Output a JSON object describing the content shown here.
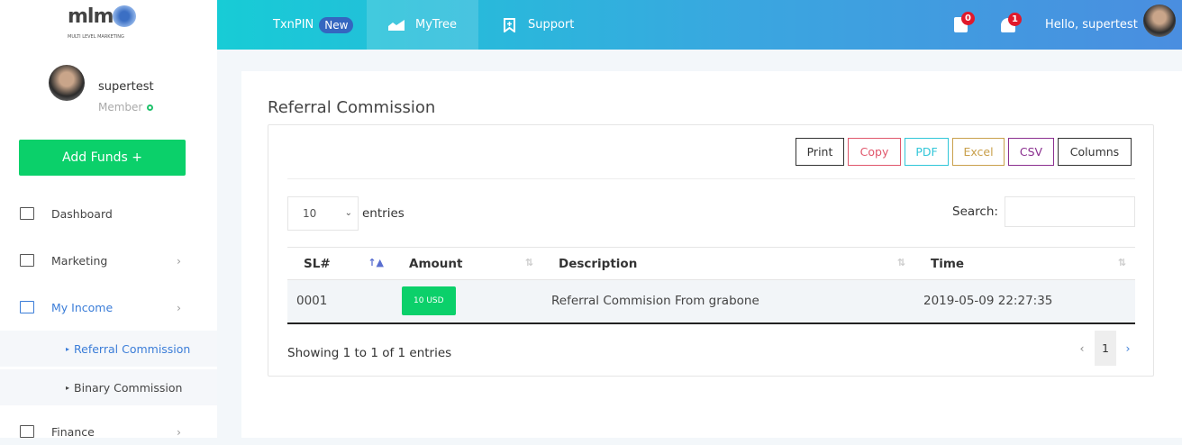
{
  "brand": {
    "logo_text": "mlm",
    "tagline": "MULTI LEVEL MARKETING"
  },
  "user": {
    "name": "supertest",
    "role": "Member",
    "status_color": "#1fc16b"
  },
  "sidebar": {
    "add_funds": "Add Funds +",
    "items": [
      {
        "label": "Dashboard",
        "icon": "monitor-icon"
      },
      {
        "label": "Marketing",
        "icon": "presentation-icon"
      },
      {
        "label": "My Income",
        "icon": "bank-icon",
        "active": true
      },
      {
        "label": "Finance",
        "icon": "dollar-icon"
      }
    ],
    "submenu": [
      {
        "label": "Referral Commission",
        "active": true
      },
      {
        "label": "Binary Commission"
      }
    ]
  },
  "topbar": {
    "txnpin": "TxnPIN",
    "new_badge": "New",
    "mytree": "MyTree",
    "support": "Support",
    "messages_count": "0",
    "notifications_count": "1",
    "greeting": "Hello, supertest"
  },
  "page": {
    "title": "Referral Commission",
    "buttons": [
      {
        "label": "Print",
        "color": "#333333"
      },
      {
        "label": "Copy",
        "color": "#e0566b"
      },
      {
        "label": "PDF",
        "color": "#31c6d8"
      },
      {
        "label": "Excel",
        "color": "#c9a04c"
      },
      {
        "label": "CSV",
        "color": "#8a2f8f"
      },
      {
        "label": "Columns",
        "color": "#333333"
      }
    ],
    "page_length": "10",
    "entries_label": "entries",
    "search_label": "Search:",
    "table": {
      "columns": [
        "SL#",
        "Amount",
        "Description",
        "Time"
      ],
      "rows": [
        {
          "sl": "0001",
          "amount": "10 USD",
          "description": "Referral Commision From grabone",
          "time": "2019-05-09 22:27:35"
        }
      ]
    },
    "info": "Showing 1 to 1 of 1 entries",
    "pagination": {
      "prev": "‹",
      "current": "1",
      "next": "›"
    }
  },
  "colors": {
    "accent": "#0bd06a",
    "link": "#3b7dd8"
  }
}
